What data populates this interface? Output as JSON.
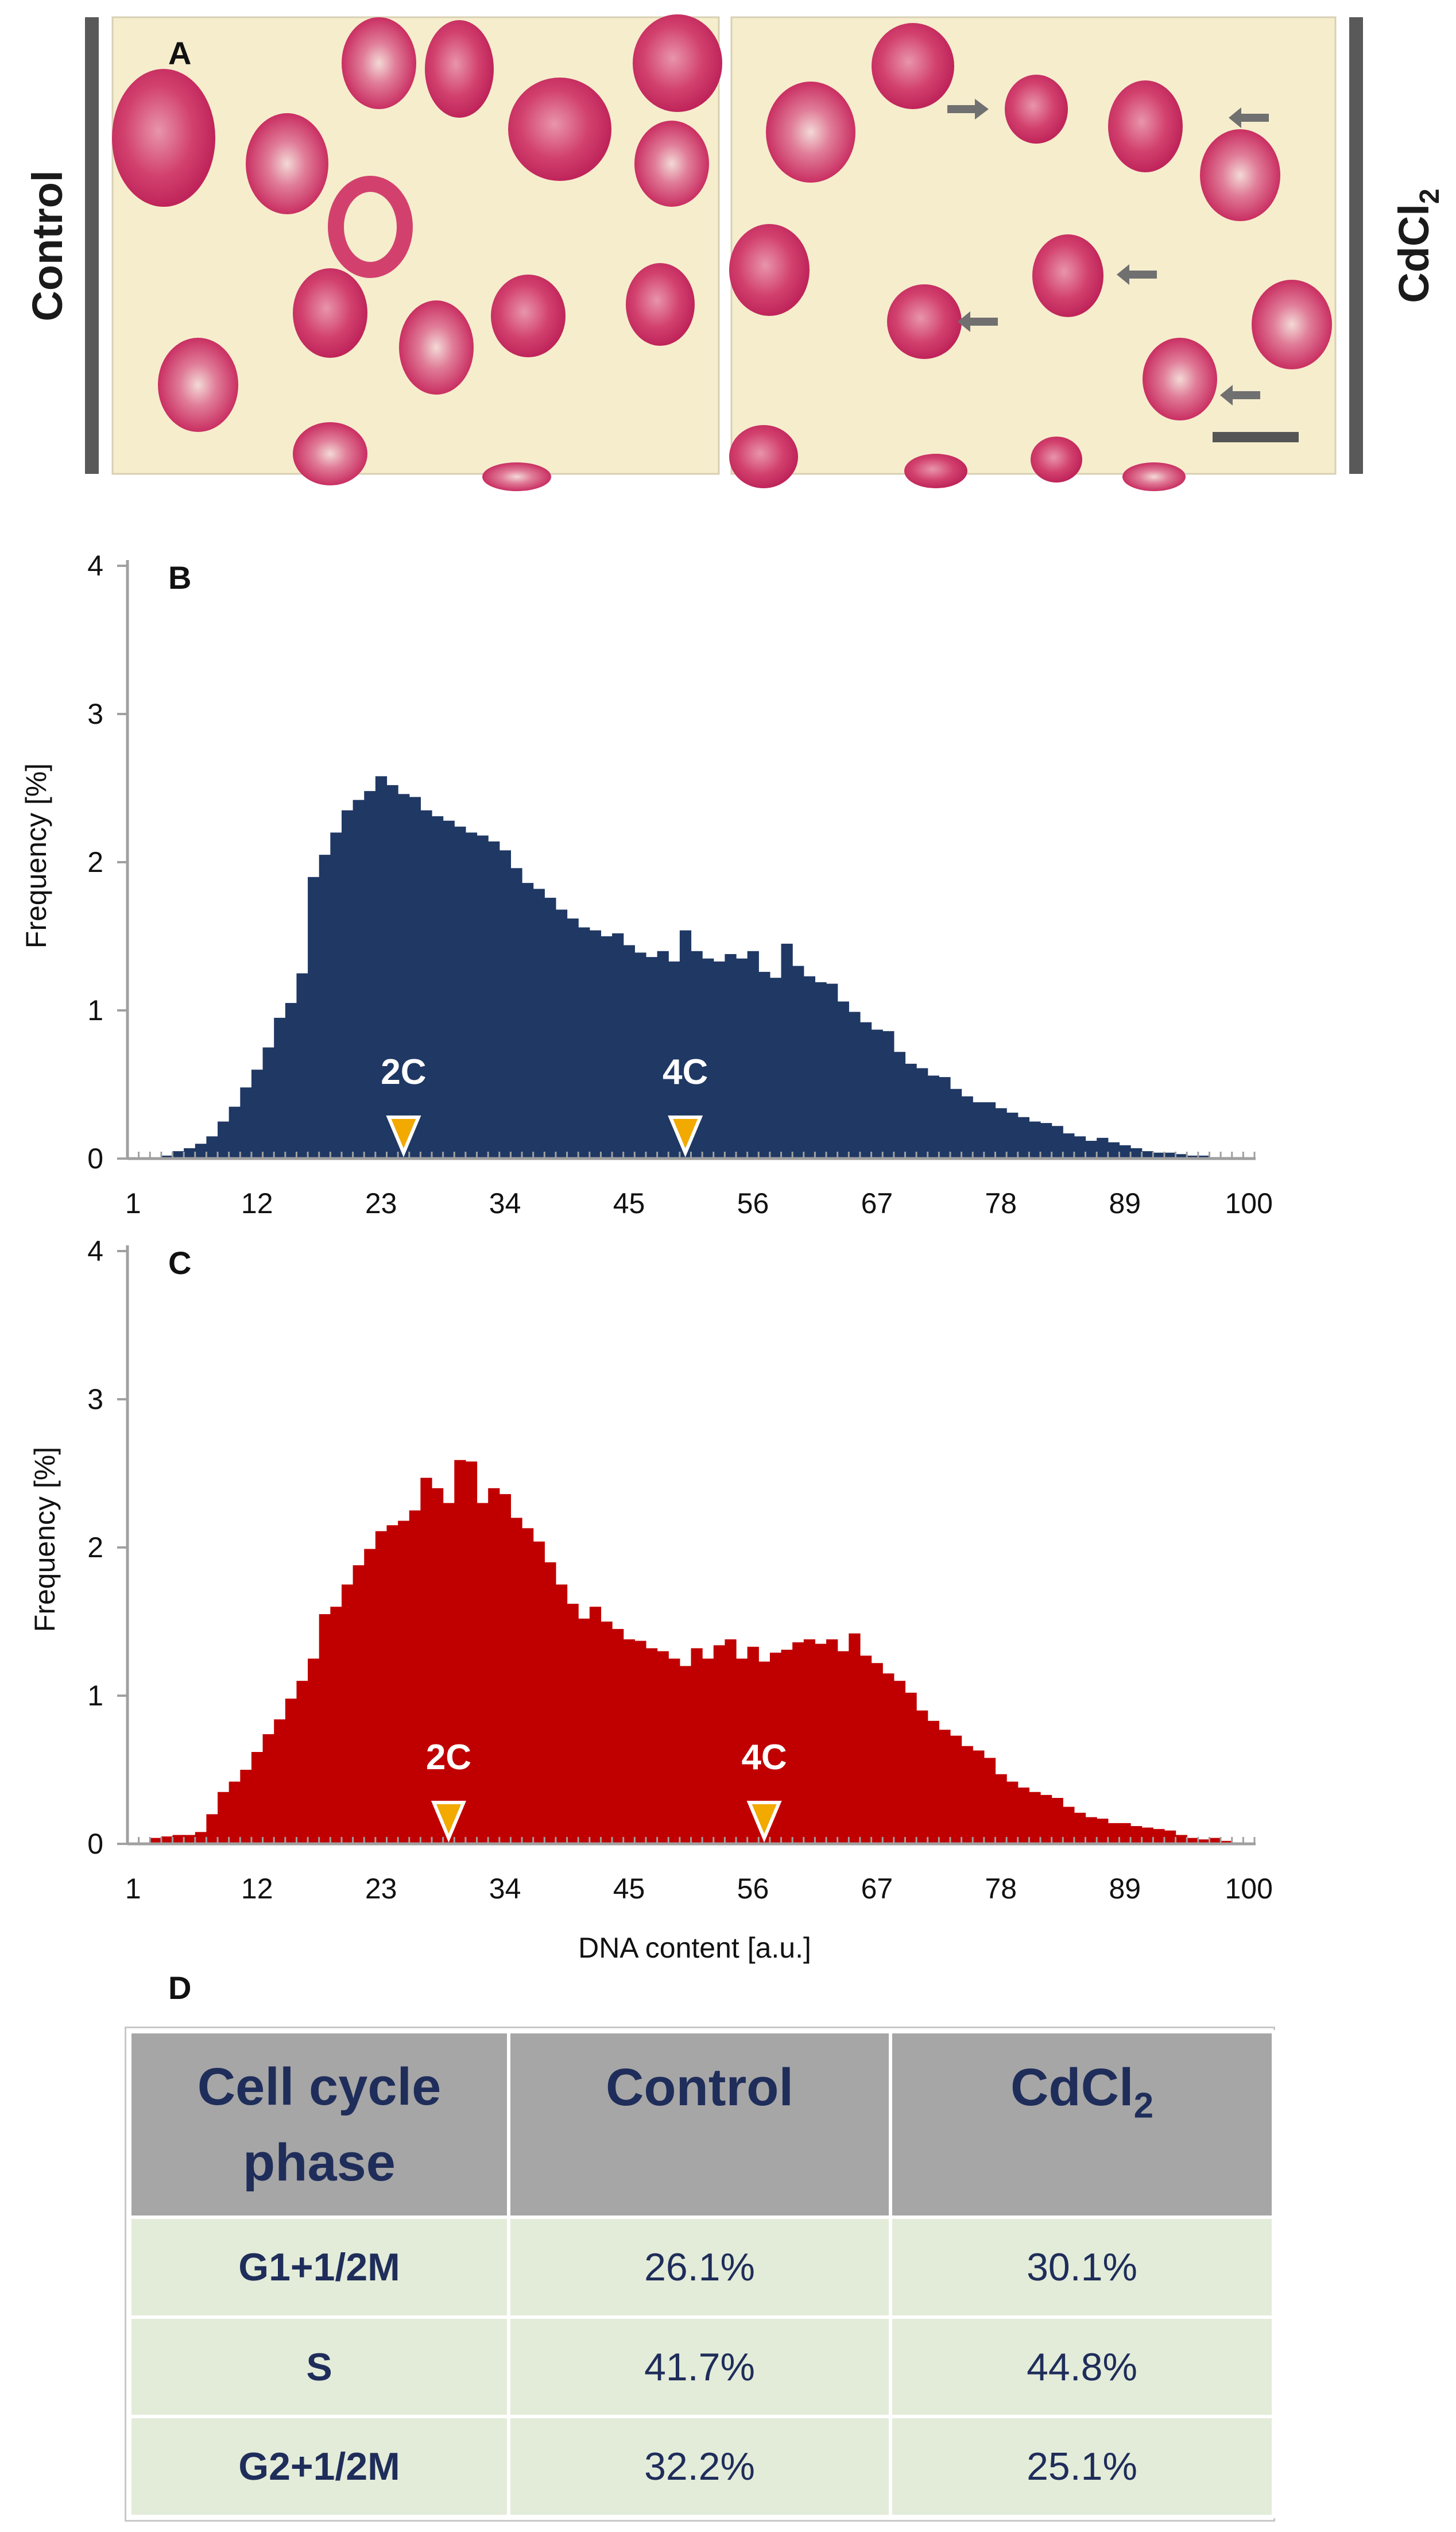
{
  "panels": {
    "a": {
      "letter": "A",
      "left_label": "Control",
      "right_label_base": "CdCl",
      "right_label_sub": "2",
      "colors": {
        "background": "#f6edcd",
        "cell": "#d2416e",
        "arrow": "#707070",
        "bar": "#555555"
      },
      "arrow_icon": "left-arrow-icon",
      "scale_bar_icon": "scale-bar-icon"
    },
    "b": {
      "letter": "B"
    },
    "c": {
      "letter": "C"
    },
    "d": {
      "letter": "D"
    }
  },
  "chart_data": [
    {
      "type": "bar",
      "name": "Control DNA content histogram",
      "color": "#1f3864",
      "xlabel": "",
      "ylabel": "Frequency [%]",
      "xlim": [
        1,
        100
      ],
      "ylim": [
        0,
        4
      ],
      "yticks": [
        0,
        1,
        2,
        3,
        4
      ],
      "xticks": [
        1,
        12,
        23,
        34,
        45,
        56,
        67,
        78,
        89,
        100
      ],
      "markers": [
        {
          "label": "2C",
          "x": 25
        },
        {
          "label": "4C",
          "x": 50
        }
      ],
      "x": [
        1,
        2,
        3,
        4,
        5,
        6,
        7,
        8,
        9,
        10,
        11,
        12,
        13,
        14,
        15,
        16,
        17,
        18,
        19,
        20,
        21,
        22,
        23,
        24,
        25,
        26,
        27,
        28,
        29,
        30,
        31,
        32,
        33,
        34,
        35,
        36,
        37,
        38,
        39,
        40,
        41,
        42,
        43,
        44,
        45,
        46,
        47,
        48,
        49,
        50,
        51,
        52,
        53,
        54,
        55,
        56,
        57,
        58,
        59,
        60,
        61,
        62,
        63,
        64,
        65,
        66,
        67,
        68,
        69,
        70,
        71,
        72,
        73,
        74,
        75,
        76,
        77,
        78,
        79,
        80,
        81,
        82,
        83,
        84,
        85,
        86,
        87,
        88,
        89,
        90,
        91,
        92,
        93,
        94,
        95,
        96,
        97,
        98,
        99,
        100
      ],
      "values": [
        0,
        0,
        0,
        0.02,
        0.05,
        0.07,
        0.1,
        0.15,
        0.25,
        0.35,
        0.48,
        0.6,
        0.75,
        0.95,
        1.05,
        1.25,
        1.9,
        2.05,
        2.2,
        2.35,
        2.42,
        2.48,
        2.58,
        2.52,
        2.46,
        2.44,
        2.35,
        2.31,
        2.28,
        2.24,
        2.2,
        2.18,
        2.14,
        2.08,
        1.96,
        1.86,
        1.82,
        1.76,
        1.68,
        1.62,
        1.56,
        1.54,
        1.5,
        1.52,
        1.44,
        1.39,
        1.36,
        1.4,
        1.33,
        1.54,
        1.4,
        1.35,
        1.33,
        1.38,
        1.35,
        1.4,
        1.26,
        1.22,
        1.45,
        1.3,
        1.23,
        1.19,
        1.18,
        1.06,
        0.99,
        0.92,
        0.87,
        0.86,
        0.72,
        0.64,
        0.61,
        0.56,
        0.55,
        0.47,
        0.42,
        0.38,
        0.38,
        0.34,
        0.31,
        0.28,
        0.25,
        0.24,
        0.22,
        0.17,
        0.15,
        0.12,
        0.14,
        0.11,
        0.09,
        0.07,
        0.05,
        0.04,
        0.04,
        0.03,
        0.02,
        0.02,
        0.01,
        0.01,
        0.01,
        0
      ]
    },
    {
      "type": "bar",
      "name": "CdCl2 DNA content histogram",
      "color": "#c00000",
      "xlabel": "DNA content [a.u.]",
      "ylabel": "Frequency [%]",
      "xlim": [
        1,
        100
      ],
      "ylim": [
        0,
        4
      ],
      "yticks": [
        0,
        1,
        2,
        3,
        4
      ],
      "xticks": [
        1,
        12,
        23,
        34,
        45,
        56,
        67,
        78,
        89,
        100
      ],
      "markers": [
        {
          "label": "2C",
          "x": 29
        },
        {
          "label": "4C",
          "x": 57
        }
      ],
      "x": [
        1,
        2,
        3,
        4,
        5,
        6,
        7,
        8,
        9,
        10,
        11,
        12,
        13,
        14,
        15,
        16,
        17,
        18,
        19,
        20,
        21,
        22,
        23,
        24,
        25,
        26,
        27,
        28,
        29,
        30,
        31,
        32,
        33,
        34,
        35,
        36,
        37,
        38,
        39,
        40,
        41,
        42,
        43,
        44,
        45,
        46,
        47,
        48,
        49,
        50,
        51,
        52,
        53,
        54,
        55,
        56,
        57,
        58,
        59,
        60,
        61,
        62,
        63,
        64,
        65,
        66,
        67,
        68,
        69,
        70,
        71,
        72,
        73,
        74,
        75,
        76,
        77,
        78,
        79,
        80,
        81,
        82,
        83,
        84,
        85,
        86,
        87,
        88,
        89,
        90,
        91,
        92,
        93,
        94,
        95,
        96,
        97,
        98,
        99,
        100
      ],
      "values": [
        0,
        0,
        0.04,
        0.05,
        0.06,
        0.06,
        0.08,
        0.2,
        0.35,
        0.42,
        0.5,
        0.62,
        0.74,
        0.84,
        0.98,
        1.1,
        1.25,
        1.55,
        1.6,
        1.75,
        1.88,
        1.99,
        2.11,
        2.15,
        2.18,
        2.25,
        2.47,
        2.4,
        2.3,
        2.59,
        2.58,
        2.3,
        2.4,
        2.36,
        2.2,
        2.13,
        2.04,
        1.9,
        1.75,
        1.62,
        1.52,
        1.6,
        1.5,
        1.45,
        1.38,
        1.37,
        1.32,
        1.3,
        1.25,
        1.2,
        1.32,
        1.25,
        1.34,
        1.38,
        1.25,
        1.33,
        1.23,
        1.29,
        1.31,
        1.36,
        1.38,
        1.35,
        1.38,
        1.3,
        1.42,
        1.27,
        1.22,
        1.15,
        1.1,
        1.02,
        0.9,
        0.83,
        0.77,
        0.73,
        0.66,
        0.63,
        0.58,
        0.47,
        0.42,
        0.38,
        0.35,
        0.33,
        0.31,
        0.25,
        0.21,
        0.18,
        0.17,
        0.14,
        0.14,
        0.12,
        0.11,
        0.1,
        0.09,
        0.06,
        0.04,
        0.03,
        0.04,
        0.02,
        0.01,
        0
      ]
    }
  ],
  "table": {
    "headers": {
      "phase_line1": "Cell cycle",
      "phase_line2": "phase",
      "control": "Control",
      "cdcl2_base": "CdCl",
      "cdcl2_sub": "2"
    },
    "rows": [
      {
        "phase": "G1+1/2M",
        "control": "26.1%",
        "cdcl2": "30.1%"
      },
      {
        "phase": "S",
        "control": "41.7%",
        "cdcl2": "44.8%"
      },
      {
        "phase": "G2+1/2M",
        "control": "32.2%",
        "cdcl2": "25.1%"
      }
    ]
  }
}
